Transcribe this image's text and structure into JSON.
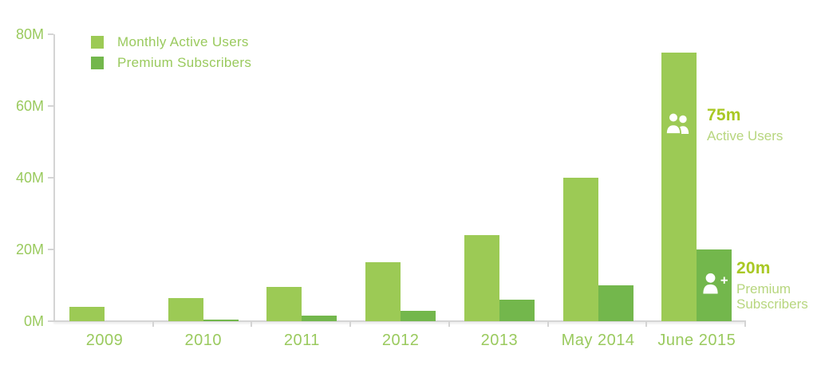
{
  "chart_data": {
    "type": "bar",
    "title": "",
    "categories": [
      "2009",
      "2010",
      "2011",
      "2012",
      "2013",
      "May 2014",
      "June 2015"
    ],
    "series": [
      {
        "name": "Monthly Active Users",
        "color": "#9cca55",
        "values": [
          4,
          6.5,
          9.5,
          16.5,
          24,
          40,
          75
        ]
      },
      {
        "name": "Premium Subscribers",
        "color": "#73b74c",
        "values": [
          0,
          0.5,
          1.5,
          3,
          6,
          10,
          20
        ]
      }
    ],
    "xlabel": "",
    "ylabel": "",
    "ylim": [
      0,
      80
    ],
    "yticks": [
      {
        "value": 80,
        "label": "80M"
      },
      {
        "value": 60,
        "label": "60M"
      },
      {
        "value": 40,
        "label": "40M"
      },
      {
        "value": 20,
        "label": "20M"
      },
      {
        "value": 0,
        "label": "0M"
      }
    ],
    "grid": false,
    "legend_position": "top-left",
    "annotations": [
      {
        "value": "75m",
        "label": "Active Users",
        "icon": "users-icon"
      },
      {
        "value": "20m",
        "label": "Premium Subscribers",
        "icon": "user-plus-icon"
      }
    ]
  },
  "colors": {
    "tick_label": "#9aca5e",
    "axis_line": "#d4d4d4",
    "annotation_value": "#a9c824",
    "annotation_label": "#b7d67e",
    "icon_fill": "#ffffff",
    "background": "#ffffff"
  }
}
